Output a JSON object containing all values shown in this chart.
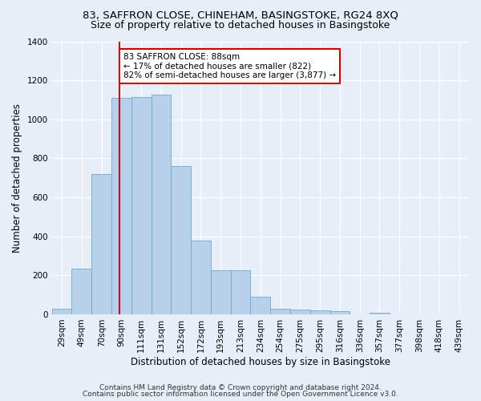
{
  "title1": "83, SAFFRON CLOSE, CHINEHAM, BASINGSTOKE, RG24 8XQ",
  "title2": "Size of property relative to detached houses in Basingstoke",
  "xlabel": "Distribution of detached houses by size in Basingstoke",
  "ylabel": "Number of detached properties",
  "bin_labels": [
    "29sqm",
    "49sqm",
    "70sqm",
    "90sqm",
    "111sqm",
    "131sqm",
    "152sqm",
    "172sqm",
    "193sqm",
    "213sqm",
    "234sqm",
    "254sqm",
    "275sqm",
    "295sqm",
    "316sqm",
    "336sqm",
    "357sqm",
    "377sqm",
    "398sqm",
    "418sqm",
    "439sqm"
  ],
  "bar_values": [
    30,
    235,
    720,
    1110,
    1115,
    1125,
    760,
    380,
    225,
    225,
    90,
    30,
    25,
    22,
    15,
    0,
    10,
    0,
    0,
    0,
    0
  ],
  "bar_color": "#b8d0e8",
  "bar_edge_color": "#6aaad4",
  "vline_color": "#cc0000",
  "annotation_text": "83 SAFFRON CLOSE: 88sqm\n← 17% of detached houses are smaller (822)\n82% of semi-detached houses are larger (3,877) →",
  "annotation_box_color": "#cc0000",
  "ylim": [
    0,
    1400
  ],
  "yticks": [
    0,
    200,
    400,
    600,
    800,
    1000,
    1200,
    1400
  ],
  "footer1": "Contains HM Land Registry data © Crown copyright and database right 2024.",
  "footer2": "Contains public sector information licensed under the Open Government Licence v3.0.",
  "bg_color": "#e8eef8",
  "plot_bg_color": "#e8eef8",
  "title_fontsize": 9.5,
  "subtitle_fontsize": 9,
  "axis_label_fontsize": 8.5,
  "tick_fontsize": 7.5,
  "footer_fontsize": 6.5,
  "annot_fontsize": 7.5
}
